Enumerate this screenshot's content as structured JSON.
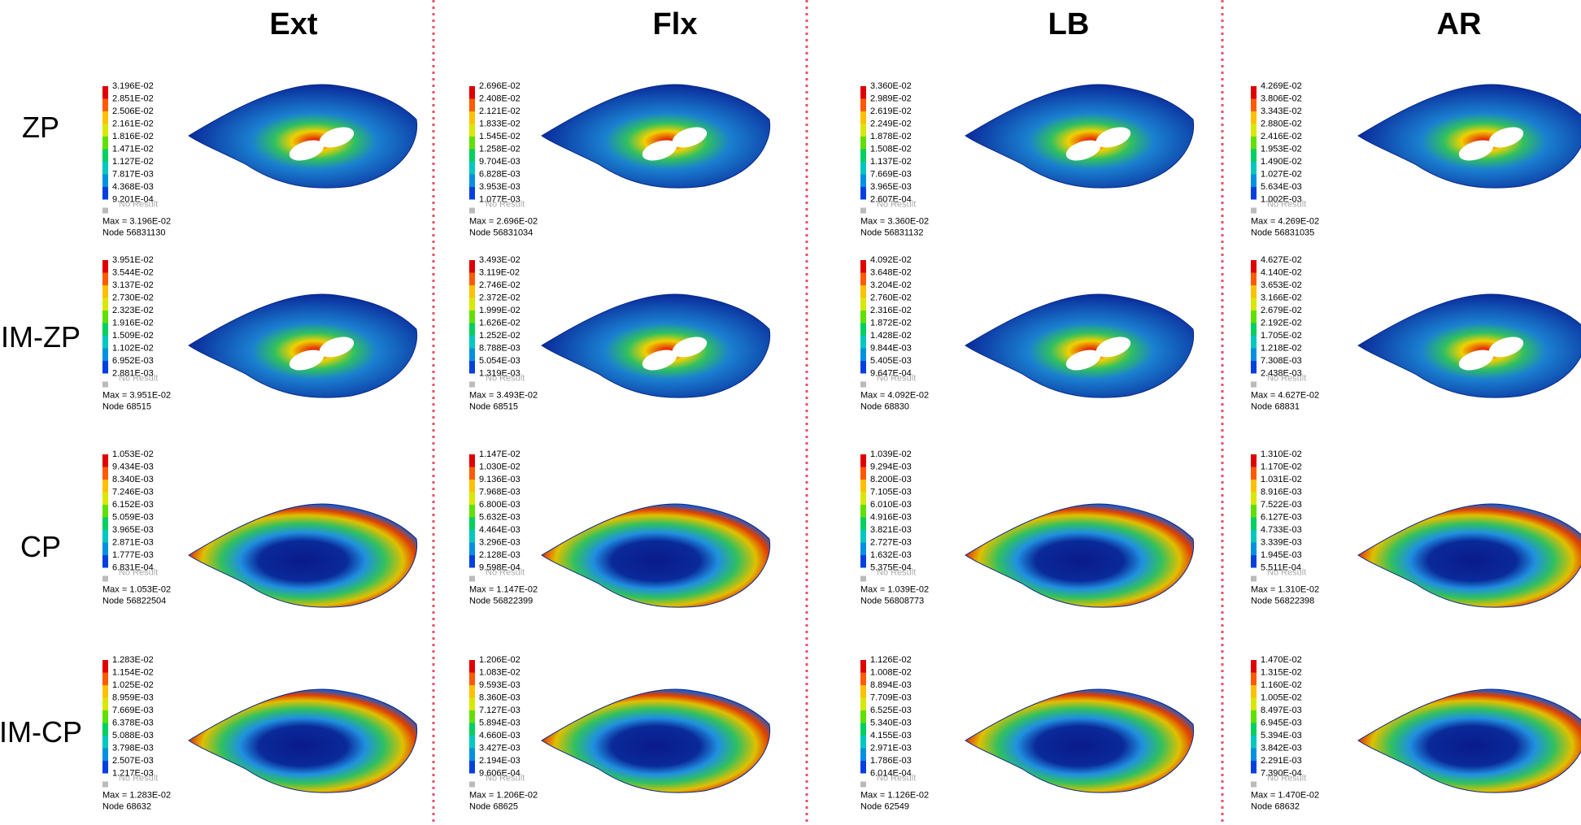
{
  "columns": [
    "Ext",
    "Flx",
    "LB",
    "AR"
  ],
  "rows": [
    "ZP",
    "IM-ZP",
    "CP",
    "IM-CP"
  ],
  "cells": [
    [
      {
        "legend": [
          "3.196E-02",
          "2.851E-02",
          "2.506E-02",
          "2.161E-02",
          "1.816E-02",
          "1.471E-02",
          "1.127E-02",
          "7.817E-03",
          "4.368E-03",
          "9.201E-04"
        ],
        "no_result": "No Result",
        "max": "Max = 3.196E-02",
        "node": "Node 56831130"
      },
      {
        "legend": [
          "2.696E-02",
          "2.408E-02",
          "2.121E-02",
          "1.833E-02",
          "1.545E-02",
          "1.258E-02",
          "9.704E-03",
          "6.828E-03",
          "3.953E-03",
          "1.077E-03"
        ],
        "no_result": "No Result",
        "max": "Max = 2.696E-02",
        "node": "Node 56831034"
      },
      {
        "legend": [
          "3.360E-02",
          "2.989E-02",
          "2.619E-02",
          "2.249E-02",
          "1.878E-02",
          "1.508E-02",
          "1.137E-02",
          "7.669E-03",
          "3.965E-03",
          "2.607E-04"
        ],
        "no_result": "No Result",
        "max": "Max = 3.360E-02",
        "node": "Node 56831132"
      },
      {
        "legend": [
          "4.269E-02",
          "3.806E-02",
          "3.343E-02",
          "2.880E-02",
          "2.416E-02",
          "1.953E-02",
          "1.490E-02",
          "1.027E-02",
          "5.634E-03",
          "1.002E-03"
        ],
        "no_result": "No Result",
        "max": "Max = 4.269E-02",
        "node": "Node 56831035"
      }
    ],
    [
      {
        "legend": [
          "3.951E-02",
          "3.544E-02",
          "3.137E-02",
          "2.730E-02",
          "2.323E-02",
          "1.916E-02",
          "1.509E-02",
          "1.102E-02",
          "6.952E-03",
          "2.881E-03"
        ],
        "no_result": "No Result",
        "max": "Max = 3.951E-02",
        "node": "Node 68515"
      },
      {
        "legend": [
          "3.493E-02",
          "3.119E-02",
          "2.746E-02",
          "2.372E-02",
          "1.999E-02",
          "1.626E-02",
          "1.252E-02",
          "8.788E-03",
          "5.054E-03",
          "1.319E-03"
        ],
        "no_result": "No Result",
        "max": "Max = 3.493E-02",
        "node": "Node 68515"
      },
      {
        "legend": [
          "4.092E-02",
          "3.648E-02",
          "3.204E-02",
          "2.760E-02",
          "2.316E-02",
          "1.872E-02",
          "1.428E-02",
          "9.844E-03",
          "5.405E-03",
          "9.647E-04"
        ],
        "no_result": "No Result",
        "max": "Max = 4.092E-02",
        "node": "Node 68830"
      },
      {
        "legend": [
          "4.627E-02",
          "4.140E-02",
          "3.653E-02",
          "3.166E-02",
          "2.679E-02",
          "2.192E-02",
          "1.705E-02",
          "1.218E-02",
          "7.308E-03",
          "2.438E-03"
        ],
        "no_result": "No Result",
        "max": "Max = 4.627E-02",
        "node": "Node 68831"
      }
    ],
    [
      {
        "legend": [
          "1.053E-02",
          "9.434E-03",
          "8.340E-03",
          "7.246E-03",
          "6.152E-03",
          "5.059E-03",
          "3.965E-03",
          "2.871E-03",
          "1.777E-03",
          "6.831E-04"
        ],
        "no_result": "No Result",
        "max": "Max = 1.053E-02",
        "node": "Node 56822504"
      },
      {
        "legend": [
          "1.147E-02",
          "1.030E-02",
          "9.136E-03",
          "7.968E-03",
          "6.800E-03",
          "5.632E-03",
          "4.464E-03",
          "3.296E-03",
          "2.128E-03",
          "9.598E-04"
        ],
        "no_result": "No Result",
        "max": "Max = 1.147E-02",
        "node": "Node 56822399"
      },
      {
        "legend": [
          "1.039E-02",
          "9.294E-03",
          "8.200E-03",
          "7.105E-03",
          "6.010E-03",
          "4.916E-03",
          "3.821E-03",
          "2.727E-03",
          "1.632E-03",
          "5.375E-04"
        ],
        "no_result": "No Result",
        "max": "Max = 1.039E-02",
        "node": "Node 56808773"
      },
      {
        "legend": [
          "1.310E-02",
          "1.170E-02",
          "1.031E-02",
          "8.916E-03",
          "7.522E-03",
          "6.127E-03",
          "4.733E-03",
          "3.339E-03",
          "1.945E-03",
          "5.511E-04"
        ],
        "no_result": "No Result",
        "max": "Max = 1.310E-02",
        "node": "Node 56822398"
      }
    ],
    [
      {
        "legend": [
          "1.283E-02",
          "1.154E-02",
          "1.025E-02",
          "8.959E-03",
          "7.669E-03",
          "6.378E-03",
          "5.088E-03",
          "3.798E-03",
          "2.507E-03",
          "1.217E-03"
        ],
        "no_result": "No Result",
        "max": "Max = 1.283E-02",
        "node": "Node 68632"
      },
      {
        "legend": [
          "1.206E-02",
          "1.083E-02",
          "9.593E-03",
          "8.360E-03",
          "7.127E-03",
          "5.894E-03",
          "4.660E-03",
          "3.427E-03",
          "2.194E-03",
          "9.606E-04"
        ],
        "no_result": "No Result",
        "max": "Max = 1.206E-02",
        "node": "Node 68625"
      },
      {
        "legend": [
          "1.126E-02",
          "1.008E-02",
          "8.894E-03",
          "7.709E-03",
          "6.525E-03",
          "5.340E-03",
          "4.155E-03",
          "2.971E-03",
          "1.786E-03",
          "6.014E-04"
        ],
        "no_result": "No Result",
        "max": "Max = 1.126E-02",
        "node": "Node 62549"
      },
      {
        "legend": [
          "1.470E-02",
          "1.315E-02",
          "1.160E-02",
          "1.005E-02",
          "8.497E-03",
          "6.945E-03",
          "5.394E-03",
          "3.842E-03",
          "2.291E-03",
          "7.390E-04"
        ],
        "no_result": "No Result",
        "max": "Max = 1.470E-02",
        "node": "Node 68632"
      }
    ]
  ]
}
